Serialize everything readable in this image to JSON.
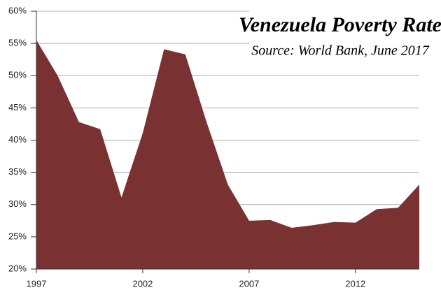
{
  "chart_data": {
    "type": "area",
    "title": "Venezuela Poverty Rate",
    "subtitle": "Source: World Bank, June 2017",
    "x": [
      1997,
      1998,
      1999,
      2000,
      2001,
      2002,
      2003,
      2004,
      2005,
      2006,
      2007,
      2008,
      2009,
      2010,
      2011,
      2012,
      2013,
      2014,
      2015
    ],
    "values": [
      55.5,
      50.0,
      42.8,
      41.7,
      31.1,
      41.1,
      54.1,
      53.3,
      42.8,
      33.1,
      27.5,
      27.6,
      26.4,
      26.8,
      27.3,
      27.2,
      29.3,
      29.5,
      33.1
    ],
    "color": "#7a3132",
    "xlim": [
      1997,
      2015
    ],
    "xticks": [
      1997,
      2002,
      2007,
      2012
    ],
    "ylim": [
      20,
      60
    ],
    "yticks": [
      {
        "value": 20,
        "label": "20%"
      },
      {
        "value": 25,
        "label": "25%"
      },
      {
        "value": 30,
        "label": "30%"
      },
      {
        "value": 35,
        "label": "35%"
      },
      {
        "value": 40,
        "label": "40%"
      },
      {
        "value": 45,
        "label": "45%"
      },
      {
        "value": 50,
        "label": "50%"
      },
      {
        "value": 55,
        "label": "55%"
      },
      {
        "value": 60,
        "label": "60%"
      }
    ],
    "grid": true
  }
}
